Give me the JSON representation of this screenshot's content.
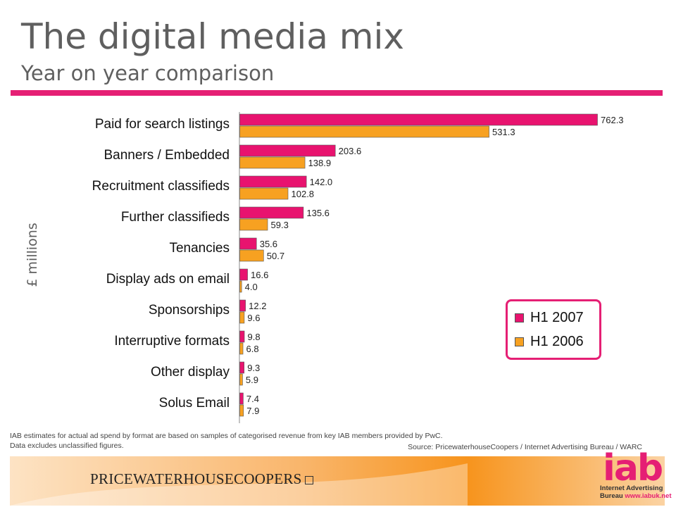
{
  "header": {
    "title": "The digital media mix",
    "subtitle": "Year on year comparison"
  },
  "colors": {
    "accent": "#e51f74",
    "series_2007": "#e8136f",
    "series_2006": "#f7a121",
    "text": "#5f5f5f"
  },
  "chart_data": {
    "type": "bar",
    "orientation": "horizontal",
    "ylabel": "£ millions",
    "categories": [
      "Paid for search listings",
      "Banners / Embedded",
      "Recruitment classifieds",
      "Further classifieds",
      "Tenancies",
      "Display ads on email",
      "Sponsorships",
      "Interruptive formats",
      "Other display",
      "Solus Email"
    ],
    "series": [
      {
        "name": "H1 2007",
        "values": [
          762.3,
          203.6,
          142.0,
          135.6,
          35.6,
          16.6,
          12.2,
          9.8,
          9.3,
          7.4
        ]
      },
      {
        "name": "H1 2006",
        "values": [
          531.3,
          138.9,
          102.8,
          59.3,
          50.7,
          4.0,
          9.6,
          6.8,
          5.9,
          7.9
        ]
      }
    ],
    "value_labels": [
      [
        "762.3",
        "203.6",
        "142.0",
        "135.6",
        "35.6",
        "16.6",
        "12.2",
        "9.8",
        "9.3",
        "7.4"
      ],
      [
        "531.3",
        "138.9",
        "102.8",
        "59.3",
        "50.7",
        "4.0",
        "9.6",
        "6.8",
        "5.9",
        "7.9"
      ]
    ],
    "legend_position": "bottom-right",
    "grid": false
  },
  "footnote": {
    "line1": "IAB estimates for actual ad spend by   format are based on samples of categorised revenue from key IAB members provided by PwC.",
    "line2": "Data excludes unclassified figures.",
    "source": "Source: PricewaterhouseCoopers / Internet  Advertising Bureau / WARC"
  },
  "logos": {
    "pwc": "PRICEWATERHOUSECOOPERS",
    "iab": "iab",
    "iab_line1": "Internet Advertising",
    "iab_line2_a": "Bureau ",
    "iab_line2_b": "www.iabuk.net"
  }
}
